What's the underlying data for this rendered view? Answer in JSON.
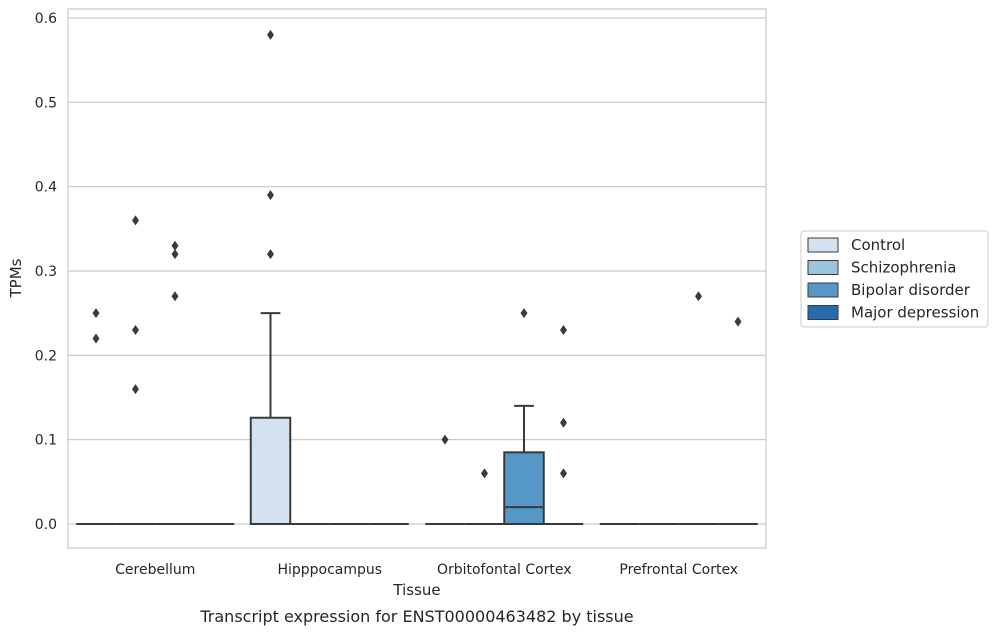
{
  "chart_data": {
    "type": "box",
    "xlabel": "Tissue",
    "ylabel": "TPMs",
    "caption": "Transcript expression for ENST00000463482 by tissue",
    "categories": [
      "Cerebellum",
      "Hipppocampus",
      "Orbitofontal Cortex",
      "Prefrontal Cortex"
    ],
    "ylim": [
      -0.03,
      0.61
    ],
    "yticks": [
      0.0,
      0.1,
      0.2,
      0.3,
      0.4,
      0.5,
      0.6
    ],
    "ytick_labels": [
      "0.0",
      "0.1",
      "0.2",
      "0.3",
      "0.4",
      "0.5",
      "0.6"
    ],
    "grid": "horizontal",
    "legend_position": "right-outside",
    "groups": [
      {
        "name": "Control",
        "color": "#d4e2f0"
      },
      {
        "name": "Schizophrenia",
        "color": "#9cc4de"
      },
      {
        "name": "Bipolar disorder",
        "color": "#5597c6"
      },
      {
        "name": "Major depression",
        "color": "#2a6aab"
      }
    ],
    "boxes": [
      {
        "category": "Cerebellum",
        "group": "Control",
        "q1": 0,
        "median": 0,
        "q3": 0,
        "whislo": 0,
        "whishi": 0,
        "fliers": [
          0.25,
          0.22
        ]
      },
      {
        "category": "Cerebellum",
        "group": "Schizophrenia",
        "q1": 0,
        "median": 0,
        "q3": 0,
        "whislo": 0,
        "whishi": 0,
        "fliers": [
          0.36,
          0.23,
          0.16
        ]
      },
      {
        "category": "Cerebellum",
        "group": "Bipolar disorder",
        "q1": 0,
        "median": 0,
        "q3": 0,
        "whislo": 0,
        "whishi": 0,
        "fliers": [
          0.33,
          0.32,
          0.27
        ]
      },
      {
        "category": "Cerebellum",
        "group": "Major depression",
        "q1": 0,
        "median": 0,
        "q3": 0,
        "whislo": 0,
        "whishi": 0,
        "fliers": []
      },
      {
        "category": "Hipppocampus",
        "group": "Control",
        "q1": 0,
        "median": 0,
        "q3": 0.126,
        "whislo": 0,
        "whishi": 0.25,
        "fliers": [
          0.58,
          0.39,
          0.32
        ]
      },
      {
        "category": "Hipppocampus",
        "group": "Schizophrenia",
        "q1": 0,
        "median": 0,
        "q3": 0,
        "whislo": 0,
        "whishi": 0,
        "fliers": []
      },
      {
        "category": "Hipppocampus",
        "group": "Bipolar disorder",
        "q1": 0,
        "median": 0,
        "q3": 0,
        "whislo": 0,
        "whishi": 0,
        "fliers": []
      },
      {
        "category": "Hipppocampus",
        "group": "Major depression",
        "q1": 0,
        "median": 0,
        "q3": 0,
        "whislo": 0,
        "whishi": 0,
        "fliers": []
      },
      {
        "category": "Orbitofontal Cortex",
        "group": "Control",
        "q1": 0,
        "median": 0,
        "q3": 0,
        "whislo": 0,
        "whishi": 0,
        "fliers": [
          0.1
        ]
      },
      {
        "category": "Orbitofontal Cortex",
        "group": "Schizophrenia",
        "q1": 0,
        "median": 0,
        "q3": 0,
        "whislo": 0,
        "whishi": 0,
        "fliers": [
          0.06
        ]
      },
      {
        "category": "Orbitofontal Cortex",
        "group": "Bipolar disorder",
        "q1": 0,
        "median": 0.02,
        "q3": 0.085,
        "whislo": 0,
        "whishi": 0.14,
        "fliers": [
          0.25
        ]
      },
      {
        "category": "Orbitofontal Cortex",
        "group": "Major depression",
        "q1": 0,
        "median": 0,
        "q3": 0,
        "whislo": 0,
        "whishi": 0,
        "fliers": [
          0.23,
          0.12,
          0.06
        ]
      },
      {
        "category": "Prefrontal Cortex",
        "group": "Control",
        "q1": 0,
        "median": 0,
        "q3": 0,
        "whislo": 0,
        "whishi": 0,
        "fliers": []
      },
      {
        "category": "Prefrontal Cortex",
        "group": "Schizophrenia",
        "q1": 0,
        "median": 0,
        "q3": 0,
        "whislo": 0,
        "whishi": 0,
        "fliers": []
      },
      {
        "category": "Prefrontal Cortex",
        "group": "Bipolar disorder",
        "q1": 0,
        "median": 0,
        "q3": 0,
        "whislo": 0,
        "whishi": 0,
        "fliers": [
          0.27
        ]
      },
      {
        "category": "Prefrontal Cortex",
        "group": "Major depression",
        "q1": 0,
        "median": 0,
        "q3": 0,
        "whislo": 0,
        "whishi": 0,
        "fliers": [
          0.24
        ]
      }
    ]
  }
}
